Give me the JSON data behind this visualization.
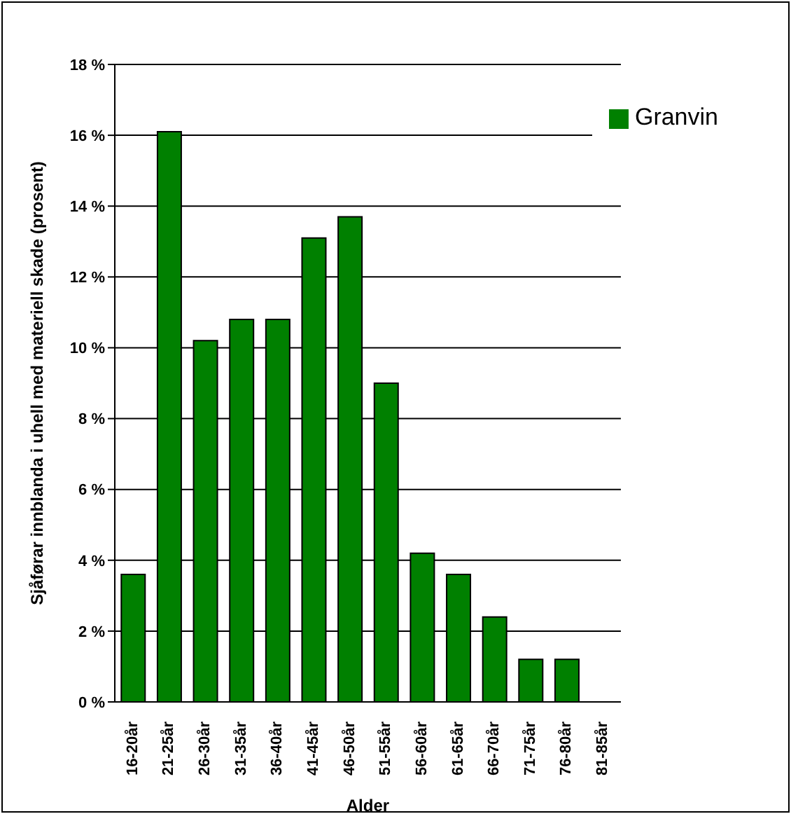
{
  "chart_data": {
    "type": "bar",
    "xlabel": "Alder",
    "ylabel": "Sjåførar innblanda i uhell med materiell skade (prosent)",
    "categories": [
      "16-20år",
      "21-25år",
      "26-30år",
      "31-35år",
      "36-40år",
      "41-45år",
      "46-50år",
      "51-55år",
      "56-60år",
      "61-65år",
      "66-70år",
      "71-75år",
      "76-80år",
      "81-85år"
    ],
    "series": [
      {
        "name": "Granvin",
        "color": "#008000",
        "values": [
          3.6,
          16.1,
          10.2,
          10.8,
          10.8,
          13.1,
          13.7,
          9.0,
          4.2,
          3.6,
          2.4,
          1.2,
          1.2,
          0
        ]
      }
    ],
    "ylim": [
      0,
      18
    ],
    "yticks": [
      {
        "value": 0,
        "label": "0 %"
      },
      {
        "value": 2,
        "label": "2 %"
      },
      {
        "value": 4,
        "label": "4 %"
      },
      {
        "value": 6,
        "label": "6 %"
      },
      {
        "value": 8,
        "label": "8 %"
      },
      {
        "value": 10,
        "label": "10 %"
      },
      {
        "value": 12,
        "label": "12 %"
      },
      {
        "value": 14,
        "label": "14 %"
      },
      {
        "value": 16,
        "label": "16 %"
      },
      {
        "value": 18,
        "label": "18 %"
      }
    ],
    "grid": "y",
    "legend": "top right"
  }
}
